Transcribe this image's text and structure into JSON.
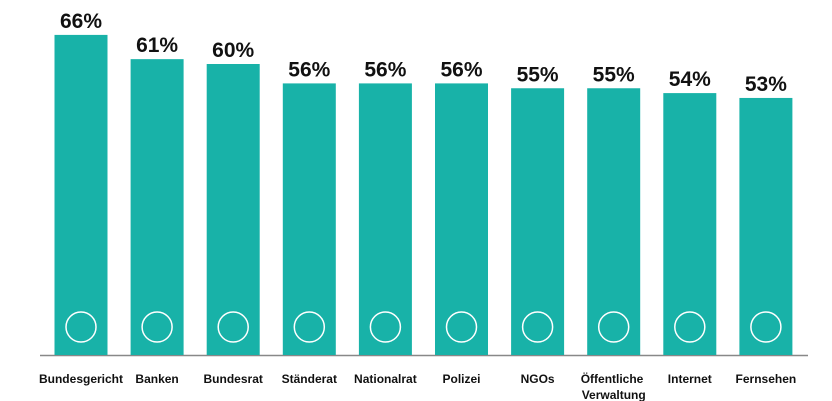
{
  "chart_data": {
    "type": "bar",
    "categories": [
      "Bundesgericht",
      "Banken",
      "Bundesrat",
      "Ständerat",
      "Nationalrat",
      "Polizei",
      "NGOs",
      "Öffentliche Verwaltung",
      "Internet",
      "Fernsehen"
    ],
    "values": [
      66,
      61,
      60,
      56,
      56,
      56,
      55,
      55,
      54,
      53
    ],
    "value_labels": [
      "66%",
      "61%",
      "60%",
      "56%",
      "56%",
      "56%",
      "55%",
      "55%",
      "54%",
      "53%"
    ],
    "color": "#18b2a8"
  }
}
